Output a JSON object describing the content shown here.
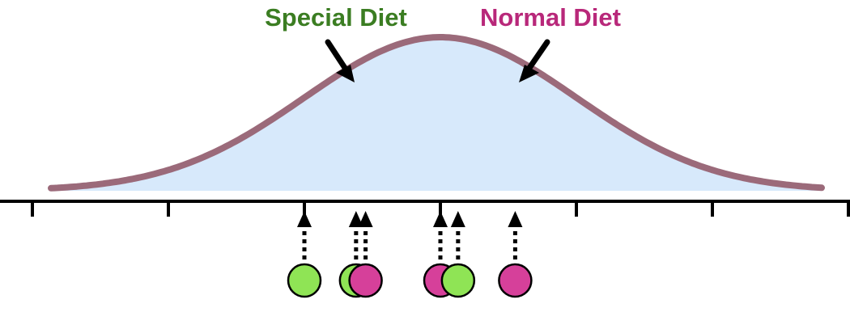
{
  "labels": {
    "special": {
      "text": "Special Diet",
      "color": "#3b7d22"
    },
    "normal": {
      "text": "Normal Diet",
      "color": "#b8287a"
    }
  },
  "colors": {
    "curve_fill": "#d7e9fb",
    "curve_stroke": "#9b6a7a",
    "green_point": "#8fe455",
    "pink_point": "#d6409a",
    "axis": "#000000"
  },
  "distribution": {
    "mean": 0,
    "sd": 1
  },
  "axis": {
    "xmin": -3,
    "xmax": 3,
    "ticks": [
      -3,
      -2,
      -1,
      0,
      1,
      2,
      3
    ]
  },
  "points": [
    {
      "group": "special",
      "x": -1.0
    },
    {
      "group": "special",
      "x": -0.62
    },
    {
      "group": "normal",
      "x": -0.55
    },
    {
      "group": "normal",
      "x": 0.0
    },
    {
      "group": "special",
      "x": 0.13
    },
    {
      "group": "normal",
      "x": 0.55
    }
  ]
}
